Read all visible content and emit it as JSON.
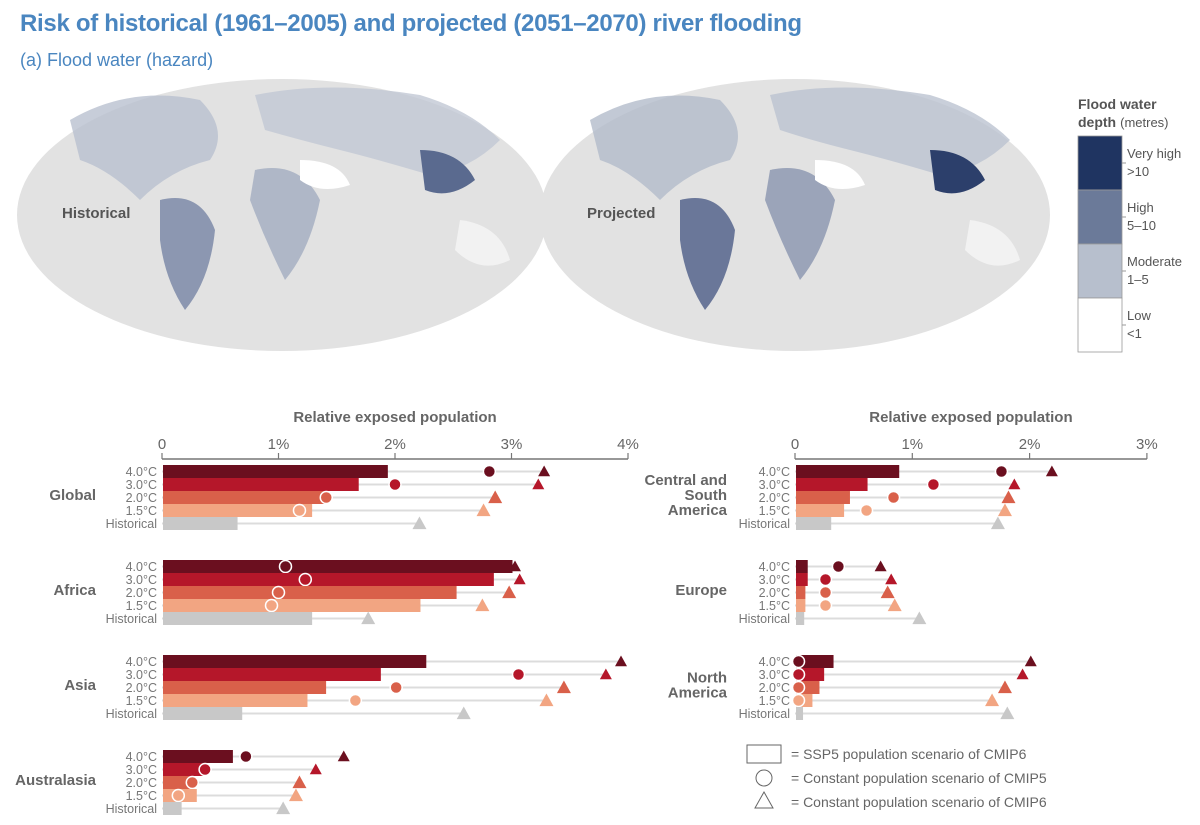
{
  "title": "Risk of historical (1961–2005) and projected (2051–2070) river flooding",
  "subtitle": "(a) Flood water (hazard)",
  "maps": {
    "historical_label": "Historical",
    "projected_label": "Projected"
  },
  "map_legend": {
    "title_bold": "Flood water",
    "title_bold2": "depth",
    "title_unit": "(metres)",
    "classes": [
      {
        "name": "Very high",
        "range": ">10",
        "color": "#1f3461"
      },
      {
        "name": "High",
        "range": "5–10",
        "color": "#6b7a99"
      },
      {
        "name": "Moderate",
        "range": "1–5",
        "color": "#b7bfcd"
      },
      {
        "name": "Low",
        "range": "<1",
        "color": "#ffffff"
      }
    ]
  },
  "shape_legend": {
    "bar": "= SSP5 population scenario of CMIP6",
    "circle": "= Constant population scenario of CMIP5",
    "triangle": "= Constant population scenario of CMIP6"
  },
  "colors": {
    "4.0°C": "#6b0f1f",
    "3.0°C": "#b5172a",
    "2.0°C": "#d9604a",
    "1.5°C": "#f2a582",
    "Historical": "#c8c8c8"
  },
  "chart_data": [
    {
      "type": "bar",
      "xlabel": "Relative exposed population",
      "xlim": [
        0,
        4
      ],
      "ticks": [
        "0",
        "1%",
        "2%",
        "3%",
        "4%"
      ],
      "row_labels": [
        "4.0°C",
        "3.0°C",
        "2.0°C",
        "1.5°C",
        "Historical"
      ],
      "regions": [
        {
          "name": "Global",
          "bars": [
            1.93,
            1.68,
            1.4,
            1.28,
            0.64
          ],
          "circles": [
            2.81,
            2.0,
            1.41,
            1.18,
            null
          ],
          "triangles": [
            3.28,
            3.23,
            2.86,
            2.76,
            2.21
          ]
        },
        {
          "name": "Africa",
          "bars": [
            3.0,
            2.84,
            2.52,
            2.21,
            1.28
          ],
          "circles": [
            1.06,
            1.23,
            1.0,
            0.94,
            null
          ],
          "triangles": [
            3.03,
            3.07,
            2.98,
            2.75,
            1.77
          ]
        },
        {
          "name": "Asia",
          "bars": [
            2.26,
            1.87,
            1.4,
            1.24,
            0.68
          ],
          "circles": [
            null,
            3.06,
            2.01,
            1.66,
            null
          ],
          "triangles": [
            3.94,
            3.81,
            3.45,
            3.3,
            2.59
          ]
        },
        {
          "name": "Australasia",
          "bars": [
            0.6,
            0.37,
            0.26,
            0.29,
            0.16
          ],
          "circles": [
            0.72,
            0.37,
            0.26,
            0.14,
            null
          ],
          "triangles": [
            1.56,
            1.32,
            1.18,
            1.15,
            1.04
          ]
        }
      ]
    },
    {
      "type": "bar",
      "xlabel": "Relative exposed population",
      "xlim": [
        0,
        3
      ],
      "ticks": [
        "0",
        "1%",
        "2%",
        "3%"
      ],
      "row_labels": [
        "4.0°C",
        "3.0°C",
        "2.0°C",
        "1.5°C",
        "Historical"
      ],
      "regions": [
        {
          "name": "Central and South America",
          "name_lines": [
            "Central and",
            "South",
            "America"
          ],
          "bars": [
            0.88,
            0.61,
            0.46,
            0.41,
            0.3
          ],
          "circles": [
            1.76,
            1.18,
            0.84,
            0.61,
            null
          ],
          "triangles": [
            2.19,
            1.87,
            1.82,
            1.79,
            1.73
          ]
        },
        {
          "name": "Europe",
          "name_lines": [
            "Europe"
          ],
          "bars": [
            0.1,
            0.1,
            0.08,
            0.08,
            0.07
          ],
          "circles": [
            0.37,
            0.26,
            0.26,
            0.26,
            null
          ],
          "triangles": [
            0.73,
            0.82,
            0.79,
            0.85,
            1.06
          ]
        },
        {
          "name": "North America",
          "name_lines": [
            "North",
            "America"
          ],
          "bars": [
            0.32,
            0.24,
            0.2,
            0.14,
            0.06
          ],
          "circles": [
            0.03,
            0.03,
            0.03,
            0.03,
            null
          ],
          "triangles": [
            2.01,
            1.94,
            1.79,
            1.68,
            1.81
          ]
        }
      ]
    }
  ]
}
